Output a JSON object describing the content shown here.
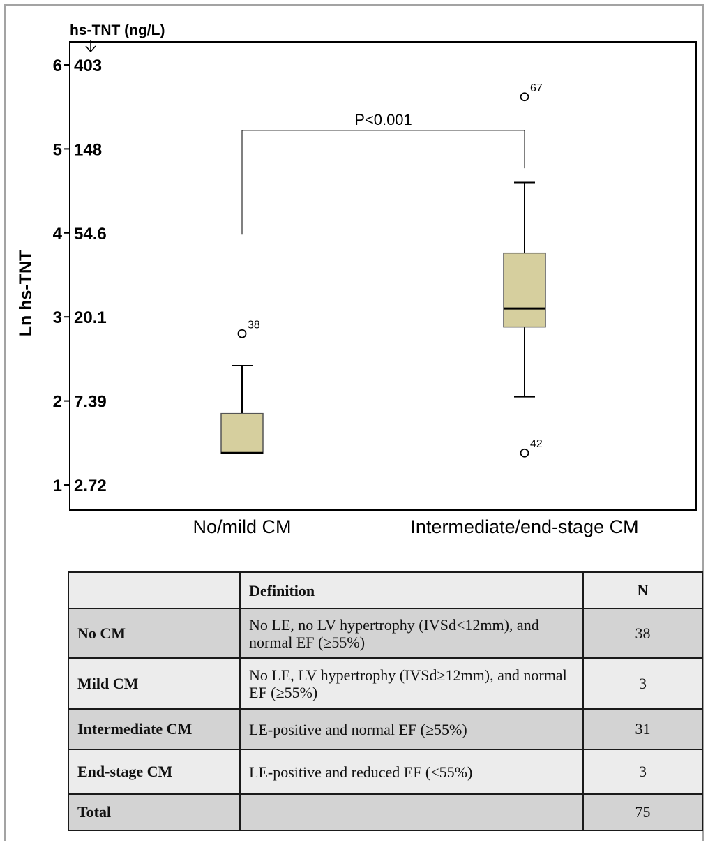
{
  "chart_data": {
    "type": "box",
    "title": "",
    "ylabel": "Ln hs-TNT",
    "secondary_axis_label": "hs-TNT (ng/L)",
    "ylim": [
      0.75,
      6.3
    ],
    "y_ticks": [
      1,
      2,
      3,
      4,
      5,
      6
    ],
    "y_tick_labels": [
      "1",
      "2",
      "3",
      "4",
      "5",
      "6"
    ],
    "y_secondary_tick_labels": [
      "2.72",
      "7.39",
      "20.1",
      "54.6",
      "148",
      "403"
    ],
    "categories": [
      "No/mild CM",
      "Intermediate/end-stage CM"
    ],
    "boxes": [
      {
        "whisker_low": 1.38,
        "q1": 1.38,
        "median": 1.38,
        "q3": 1.85,
        "whisker_high": 2.42
      },
      {
        "whisker_low": 2.05,
        "q1": 2.88,
        "median": 3.1,
        "q3": 3.76,
        "whisker_high": 4.6
      }
    ],
    "outliers": [
      {
        "category": 0,
        "value": 2.8,
        "label": "38"
      },
      {
        "category": 1,
        "value": 5.62,
        "label": "67"
      },
      {
        "category": 1,
        "value": 1.38,
        "label": "42"
      }
    ],
    "significance": {
      "label": "P<0.001",
      "bracket_y": 5.22,
      "left_drop_to": 3.98,
      "right_drop_to": 4.77
    },
    "box_fill": "#d6cf9e",
    "grid": false
  },
  "table": {
    "header": {
      "col1": "",
      "col2": "Definition",
      "col3": "N"
    },
    "rows": [
      {
        "name": "No CM",
        "definition": "No LE, no LV hypertrophy (IVSd<12mm), and normal EF (≥55%)",
        "n": "38"
      },
      {
        "name": "Mild CM",
        "definition": "No LE, LV hypertrophy (IVSd≥12mm), and normal EF (≥55%)",
        "n": "3"
      },
      {
        "name": "Intermediate CM",
        "definition": "LE-positive and normal EF (≥55%)",
        "n": "31"
      },
      {
        "name": "End-stage CM",
        "definition": "LE-positive and reduced EF (<55%)",
        "n": "3"
      },
      {
        "name": "Total",
        "definition": "",
        "n": "75"
      }
    ]
  }
}
